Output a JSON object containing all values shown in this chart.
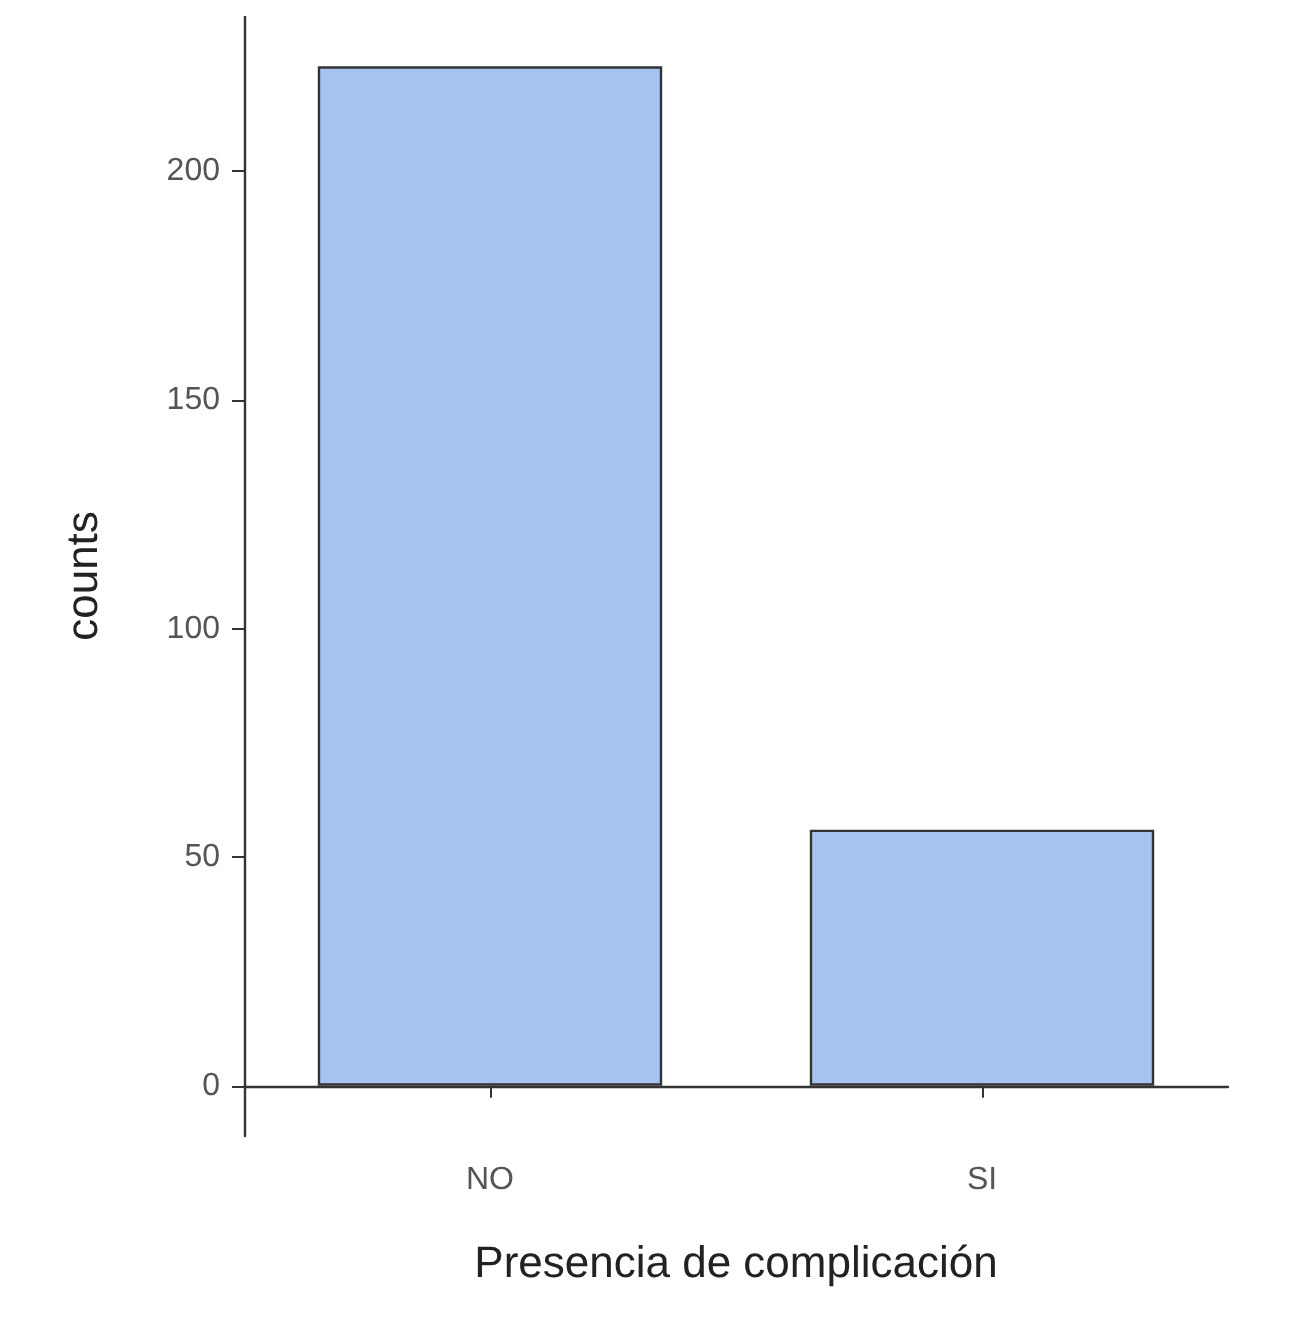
{
  "chart_data": {
    "type": "bar",
    "xlabel": "Presencia de complicación",
    "ylabel": "counts",
    "categories": [
      "NO",
      "SI"
    ],
    "series": [
      {
        "color": "#a4c3f0",
        "values": [
          223,
          56
        ]
      }
    ],
    "ylim": [
      -11,
      234
    ],
    "yticks": [
      0,
      50,
      100,
      150,
      200
    ],
    "grid": false
  }
}
